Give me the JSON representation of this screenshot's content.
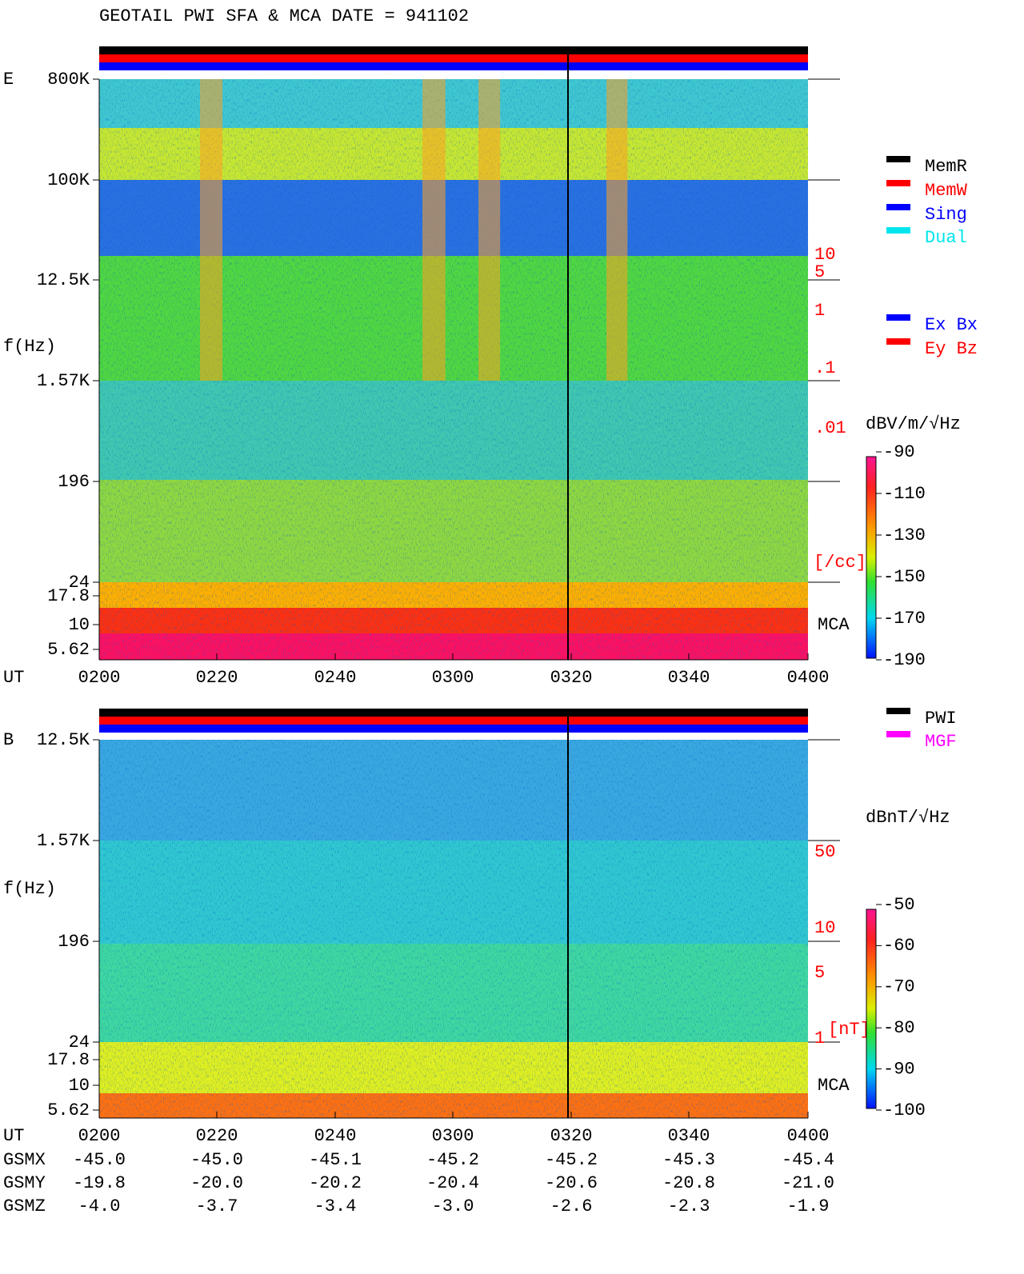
{
  "title": "GEOTAIL   PWI SFA & MCA   DATE = 941102",
  "panels": [
    {
      "label": "E",
      "y_label": "f(Hz)",
      "freq_labels": [
        "800K",
        "100K",
        "12.5K",
        "1.57K",
        "196",
        "24",
        "17.8",
        "10",
        "5.62"
      ],
      "right_labels": [
        "10",
        "5",
        "1",
        ".1",
        ".01",
        "[/cc]"
      ],
      "mca": "MCA",
      "time_label": "UT",
      "times": [
        "0200",
        "0220",
        "0240",
        "0300",
        "0320",
        "0340",
        "0400"
      ],
      "units": "dBV/m/√Hz",
      "colorbar_ticks": [
        -90,
        -110,
        -130,
        -150,
        -170,
        -190
      ],
      "legends": [
        [
          {
            "name": "MemR",
            "color": "#000000"
          },
          {
            "name": "MemW",
            "color": "#ff0000"
          },
          {
            "name": "Sing",
            "color": "#0000ff"
          },
          {
            "name": "Dual",
            "color": "#00e5ee"
          }
        ],
        [
          {
            "name": "Ex Bx",
            "color": "#0000ff"
          },
          {
            "name": "Ey Bz",
            "color": "#ff0000"
          }
        ]
      ]
    },
    {
      "label": "B",
      "y_label": "f(Hz)",
      "freq_labels": [
        "12.5K",
        "1.57K",
        "196",
        "24",
        "17.8",
        "10",
        "5.62"
      ],
      "right_labels": [
        "50",
        "10",
        "5",
        "1",
        "[nT]"
      ],
      "mca": "MCA",
      "time_label": "UT",
      "times": [
        "0200",
        "0220",
        "0240",
        "0300",
        "0320",
        "0340",
        "0400"
      ],
      "units": "dBnT/√Hz",
      "colorbar_ticks": [
        -50,
        -60,
        -70,
        -80,
        -90,
        -100
      ],
      "legends": [
        [
          {
            "name": "PWI",
            "color": "#000000"
          },
          {
            "name": "MGF",
            "color": "#ff00ff"
          }
        ]
      ]
    }
  ],
  "orbit": {
    "rows": [
      {
        "name": "GSMX",
        "values": [
          "-45.0",
          "-45.0",
          "-45.1",
          "-45.2",
          "-45.2",
          "-45.3",
          "-45.4"
        ]
      },
      {
        "name": "GSMY",
        "values": [
          "-19.8",
          "-20.0",
          "-20.2",
          "-20.4",
          "-20.6",
          "-20.8",
          "-21.0"
        ]
      },
      {
        "name": "GSMZ",
        "values": [
          "-4.0",
          "-3.7",
          "-3.4",
          "-3.0",
          "-2.6",
          "-2.3",
          "-1.9"
        ]
      }
    ]
  }
}
